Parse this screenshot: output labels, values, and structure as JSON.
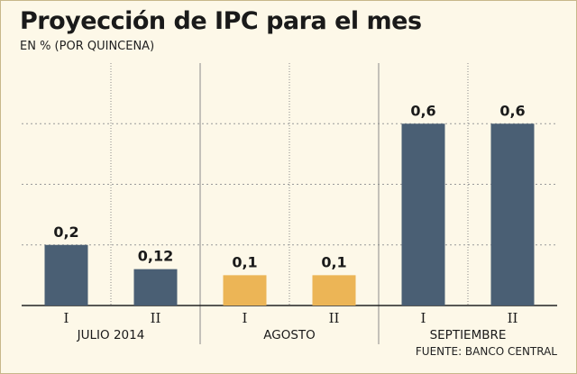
{
  "title": "Proyección de IPC para el mes",
  "subtitle": "EN % (POR QUINCENA)",
  "source": "FUENTE: BANCO CENTRAL",
  "colors": {
    "background": "#fdf8e8",
    "bar_default": "#4a5f74",
    "bar_highlight": "#ecb556",
    "grid": "#9a9a9a",
    "divider": "#8a8a8a"
  },
  "chart_data": {
    "type": "bar",
    "title": "Proyección de IPC para el mes",
    "subtitle": "EN % (POR QUINCENA)",
    "ylim": [
      0,
      0.8
    ],
    "y_gridlines": [
      0.2,
      0.4,
      0.6
    ],
    "grid": true,
    "groups": [
      {
        "label": "JULIO 2014",
        "categories": [
          "I",
          "II"
        ]
      },
      {
        "label": "AGOSTO",
        "categories": [
          "I",
          "II"
        ]
      },
      {
        "label": "SEPTIEMBRE",
        "categories": [
          "I",
          "II"
        ]
      }
    ],
    "bars": [
      {
        "group": "JULIO 2014",
        "category": "I",
        "value": 0.2,
        "label": "0,2",
        "highlight": false
      },
      {
        "group": "JULIO 2014",
        "category": "II",
        "value": 0.12,
        "label": "0,12",
        "highlight": false
      },
      {
        "group": "AGOSTO",
        "category": "I",
        "value": 0.1,
        "label": "0,1",
        "highlight": true
      },
      {
        "group": "AGOSTO",
        "category": "II",
        "value": 0.1,
        "label": "0,1",
        "highlight": true
      },
      {
        "group": "SEPTIEMBRE",
        "category": "I",
        "value": 0.6,
        "label": "0,6",
        "highlight": false
      },
      {
        "group": "SEPTIEMBRE",
        "category": "II",
        "value": 0.6,
        "label": "0,6",
        "highlight": false
      }
    ]
  }
}
